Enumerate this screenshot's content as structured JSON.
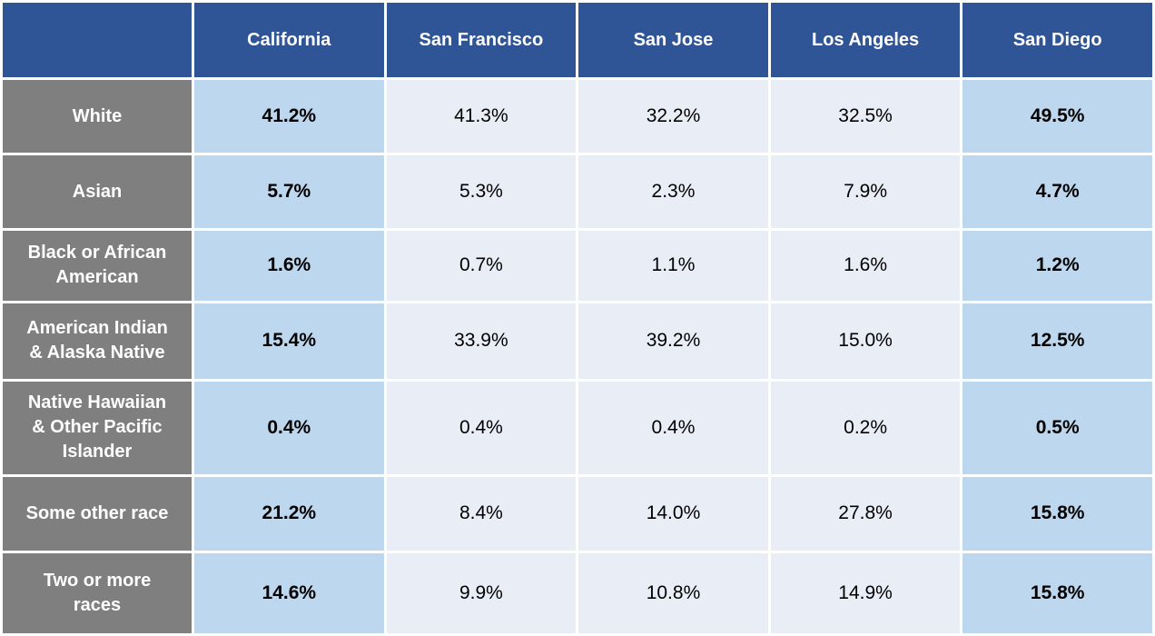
{
  "chart_data": {
    "type": "table",
    "corner_label": "",
    "columns": [
      "California",
      "San Francisco",
      "San Jose",
      "Los Angeles",
      "San Diego"
    ],
    "rows": [
      {
        "label": "White",
        "values": [
          "41.2%",
          "41.3%",
          "32.2%",
          "32.5%",
          "49.5%"
        ]
      },
      {
        "label": "Asian",
        "values": [
          "5.7%",
          "5.3%",
          "2.3%",
          "7.9%",
          "4.7%"
        ]
      },
      {
        "label": "Black or African American",
        "values": [
          "1.6%",
          "0.7%",
          "1.1%",
          "1.6%",
          "1.2%"
        ]
      },
      {
        "label": "American Indian & Alaska Native",
        "values": [
          "15.4%",
          "33.9%",
          "39.2%",
          "15.0%",
          "12.5%"
        ]
      },
      {
        "label": "Native Hawaiian & Other Pacific Islander",
        "values": [
          "0.4%",
          "0.4%",
          "0.4%",
          "0.2%",
          "0.5%"
        ]
      },
      {
        "label": "Some other race",
        "values": [
          "21.2%",
          "8.4%",
          "14.0%",
          "27.8%",
          "15.8%"
        ]
      },
      {
        "label": "Two or more races",
        "values": [
          "14.6%",
          "9.9%",
          "10.8%",
          "14.9%",
          "15.8%"
        ]
      }
    ],
    "highlight_columns": [
      0,
      4
    ],
    "layout": {
      "legend": "none",
      "grid": "white-gutters"
    },
    "colors": {
      "header_bg": "#2F5597",
      "header_text": "#FFFFFF",
      "label_bg": "#7F7F7F",
      "label_text": "#FFFFFF",
      "highlight_bg": "#BDD7EE",
      "cell_bg": "#E9EDF6",
      "cell_text": "#000000",
      "border": "#FFFFFF"
    }
  }
}
